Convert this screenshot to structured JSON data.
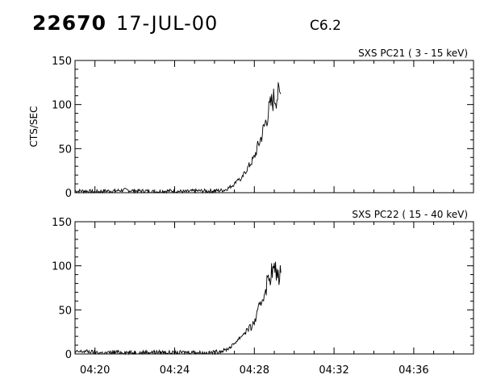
{
  "header": {
    "event_number": "22670",
    "date": "17-JUL-00",
    "flare_class": "C6.2"
  },
  "chart_data": [
    {
      "type": "line",
      "title": "SXS PC21  (  3 - 15 keV)",
      "ylabel": "CTS/SEC",
      "xlabel": "",
      "ylim": [
        0,
        150
      ],
      "yticks": [
        0,
        50,
        100,
        150
      ],
      "xlim": [
        "04:19:00",
        "04:39:00"
      ],
      "xticks": [
        "04:20",
        "04:24",
        "04:28",
        "04:32",
        "04:36"
      ],
      "grid": false,
      "series": [
        {
          "x": [
            "04:19:00",
            "04:19:30",
            "04:20:00",
            "04:20:30",
            "04:21:00",
            "04:21:30",
            "04:22:00",
            "04:22:30",
            "04:23:00",
            "04:23:30",
            "04:24:00",
            "04:24:30",
            "04:25:00",
            "04:25:30",
            "04:26:00",
            "04:26:30",
            "04:26:45",
            "04:27:00",
            "04:27:10",
            "04:27:20",
            "04:27:30",
            "04:27:40",
            "04:27:50",
            "04:28:00",
            "04:28:10",
            "04:28:20",
            "04:28:30",
            "04:28:40",
            "04:28:50",
            "04:29:00",
            "04:29:10",
            "04:29:20"
          ],
          "values": [
            2,
            2,
            1,
            2,
            2,
            3,
            2,
            2,
            1,
            2,
            2,
            1,
            2,
            2,
            2,
            3,
            6,
            10,
            16,
            14,
            22,
            28,
            34,
            40,
            52,
            62,
            75,
            88,
            100,
            108,
            110,
            112
          ]
        }
      ]
    },
    {
      "type": "line",
      "title": "SXS PC22  ( 15 - 40 keV)",
      "ylabel": "",
      "xlabel": "",
      "ylim": [
        0,
        150
      ],
      "yticks": [
        0,
        50,
        100,
        150
      ],
      "xlim": [
        "04:19:00",
        "04:39:00"
      ],
      "xticks": [
        "04:20",
        "04:24",
        "04:28",
        "04:32",
        "04:36"
      ],
      "grid": false,
      "series": [
        {
          "x": [
            "04:19:00",
            "04:19:30",
            "04:20:00",
            "04:20:30",
            "04:21:00",
            "04:21:30",
            "04:22:00",
            "04:22:30",
            "04:23:00",
            "04:23:30",
            "04:24:00",
            "04:24:30",
            "04:25:00",
            "04:25:30",
            "04:26:00",
            "04:26:30",
            "04:26:45",
            "04:27:00",
            "04:27:10",
            "04:27:20",
            "04:27:30",
            "04:27:40",
            "04:27:50",
            "04:28:00",
            "04:28:10",
            "04:28:20",
            "04:28:30",
            "04:28:40",
            "04:28:50",
            "04:29:00",
            "04:29:10",
            "04:29:20"
          ],
          "values": [
            2,
            3,
            2,
            1,
            2,
            2,
            1,
            2,
            2,
            2,
            1,
            2,
            2,
            1,
            2,
            4,
            7,
            12,
            16,
            20,
            24,
            28,
            30,
            36,
            46,
            58,
            70,
            82,
            92,
            95,
            90,
            92
          ]
        }
      ]
    }
  ]
}
